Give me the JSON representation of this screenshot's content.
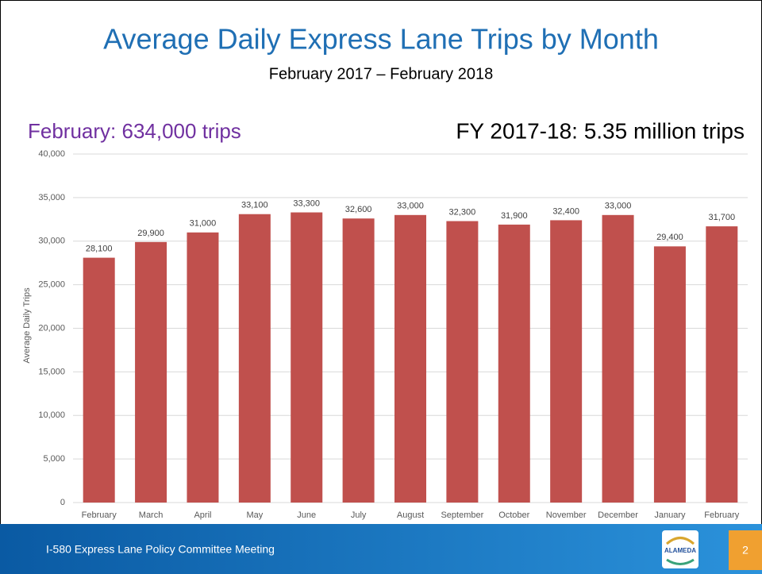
{
  "chart_data": {
    "type": "bar",
    "title": "Average Daily Express Lane Trips by Month",
    "subtitle": "February 2017 – February 2018",
    "annotations": [
      "February: 634,000 trips",
      "FY 2017-18: 5.35 million trips"
    ],
    "y_label": "Average Daily Trips",
    "categories": [
      "February",
      "March",
      "April",
      "May",
      "June",
      "July",
      "August",
      "September",
      "October",
      "November",
      "December",
      "January",
      "February"
    ],
    "values": [
      28100,
      29900,
      31000,
      33100,
      33300,
      32600,
      33000,
      32300,
      31900,
      32400,
      33000,
      29400,
      31700
    ],
    "value_labels": [
      "28,100",
      "29,900",
      "31,000",
      "33,100",
      "33,300",
      "32,600",
      "33,000",
      "32,300",
      "31,900",
      "32,400",
      "33,000",
      "29,400",
      "31,700"
    ],
    "color": "#c0504d",
    "ylim": [
      0,
      40000
    ],
    "yticks": [
      0,
      {
        "value": 5000,
        "label": "5,000"
      },
      {
        "value": 10000,
        "label": "10,000"
      },
      {
        "value": 15000,
        "label": "15,000"
      },
      {
        "value": 20000,
        "label": "20,000"
      },
      {
        "value": 25000,
        "label": "25,000"
      },
      {
        "value": 30000,
        "label": "30,000"
      },
      {
        "value": 35000,
        "label": "35,000"
      },
      {
        "value": 40000,
        "label": "40,000"
      }
    ],
    "grid": true
  },
  "footer": {
    "text": "I-580 Express Lane Policy Committee Meeting",
    "logo": "ALAMEDA",
    "page": "2"
  }
}
